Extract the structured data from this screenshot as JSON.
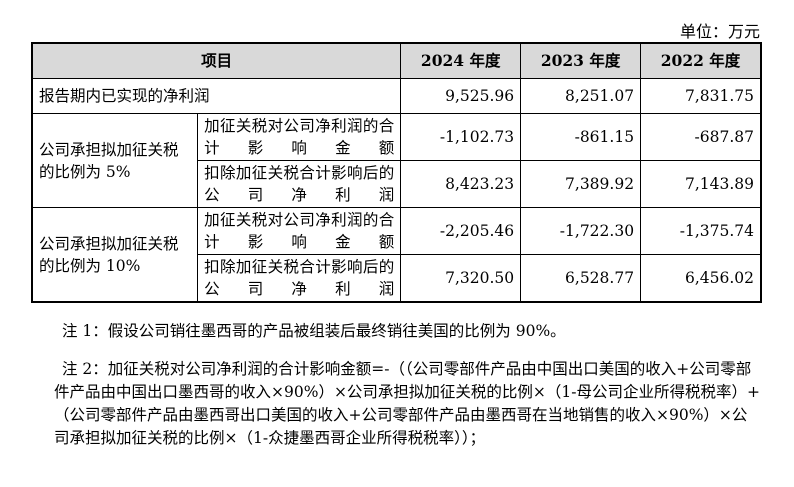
{
  "unit_label": "单位：万元",
  "table": {
    "headers": [
      "项目",
      "2024 年度",
      "2023 年度",
      "2022 年度"
    ],
    "row_realized": {
      "label": "报告期内已实现的净利润",
      "values": [
        "9,525.96",
        "8,251.07",
        "7,831.75"
      ]
    },
    "group_5": {
      "label": "公司承担拟加征关税的比例为 5%",
      "rows": [
        {
          "label": "加征关税对公司净利润的合计影响金额",
          "values": [
            "-1,102.73",
            "-861.15",
            "-687.87"
          ]
        },
        {
          "label": "扣除加征关税合计影响后的公司净利润",
          "values": [
            "8,423.23",
            "7,389.92",
            "7,143.89"
          ]
        }
      ]
    },
    "group_10": {
      "label": "公司承担拟加征关税的比例为 10%",
      "rows": [
        {
          "label": "加征关税对公司净利润的合计影响金额",
          "values": [
            "-2,205.46",
            "-1,722.30",
            "-1,375.74"
          ]
        },
        {
          "label": "扣除加征关税合计影响后的公司净利润",
          "values": [
            "7,320.50",
            "6,528.77",
            "6,456.02"
          ]
        }
      ]
    }
  },
  "notes": {
    "note1": "注 1：假设公司销往墨西哥的产品被组装后最终销往美国的比例为 90%。",
    "note2": "注 2：加征关税对公司净利润的合计影响金额=-（（公司零部件产品由中国出口美国的收入+公司零部件产品由中国出口墨西哥的收入×90%）×公司承担拟加征关税的比例×（1-母公司企业所得税税率）+（公司零部件产品由墨西哥出口美国的收入+公司零部件产品由墨西哥在当地销售的收入×90%）×公司承担拟加征关税的比例×（1-众捷墨西哥企业所得税税率））；"
  }
}
